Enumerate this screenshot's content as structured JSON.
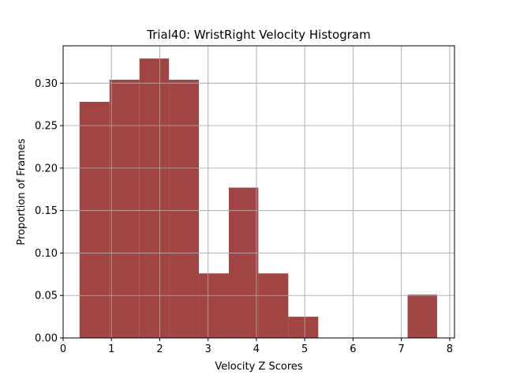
{
  "chart_data": {
    "type": "bar",
    "title": "Trial40: WristRight Velocity Histogram",
    "xlabel": "Velocity Z Scores",
    "ylabel": "Proportion of Frames",
    "xlim": [
      0,
      8.1
    ],
    "ylim": [
      0,
      0.344
    ],
    "grid": true,
    "bar_color": "#a14444",
    "grid_color": "#b0b0b0",
    "x_ticks": [
      {
        "value": 0,
        "label": "0"
      },
      {
        "value": 1,
        "label": "1"
      },
      {
        "value": 2,
        "label": "2"
      },
      {
        "value": 3,
        "label": "3"
      },
      {
        "value": 4,
        "label": "4"
      },
      {
        "value": 5,
        "label": "5"
      },
      {
        "value": 6,
        "label": "6"
      },
      {
        "value": 7,
        "label": "7"
      },
      {
        "value": 8,
        "label": "8"
      }
    ],
    "y_ticks": [
      {
        "value": 0.0,
        "label": "0.00"
      },
      {
        "value": 0.05,
        "label": "0.05"
      },
      {
        "value": 0.1,
        "label": "0.10"
      },
      {
        "value": 0.15,
        "label": "0.15"
      },
      {
        "value": 0.2,
        "label": "0.20"
      },
      {
        "value": 0.25,
        "label": "0.25"
      },
      {
        "value": 0.3,
        "label": "0.30"
      }
    ],
    "bins": [
      {
        "x0": 0.34,
        "x1": 0.96,
        "value": 0.278
      },
      {
        "x0": 0.96,
        "x1": 1.58,
        "value": 0.304
      },
      {
        "x0": 1.58,
        "x1": 2.19,
        "value": 0.329
      },
      {
        "x0": 2.19,
        "x1": 2.81,
        "value": 0.304
      },
      {
        "x0": 2.81,
        "x1": 3.43,
        "value": 0.076
      },
      {
        "x0": 3.43,
        "x1": 4.04,
        "value": 0.177
      },
      {
        "x0": 4.04,
        "x1": 4.66,
        "value": 0.076
      },
      {
        "x0": 4.66,
        "x1": 5.28,
        "value": 0.025
      },
      {
        "x0": 5.28,
        "x1": 5.89,
        "value": 0.0
      },
      {
        "x0": 5.89,
        "x1": 6.51,
        "value": 0.0
      },
      {
        "x0": 6.51,
        "x1": 7.13,
        "value": 0.0
      },
      {
        "x0": 7.13,
        "x1": 7.74,
        "value": 0.051
      }
    ]
  }
}
